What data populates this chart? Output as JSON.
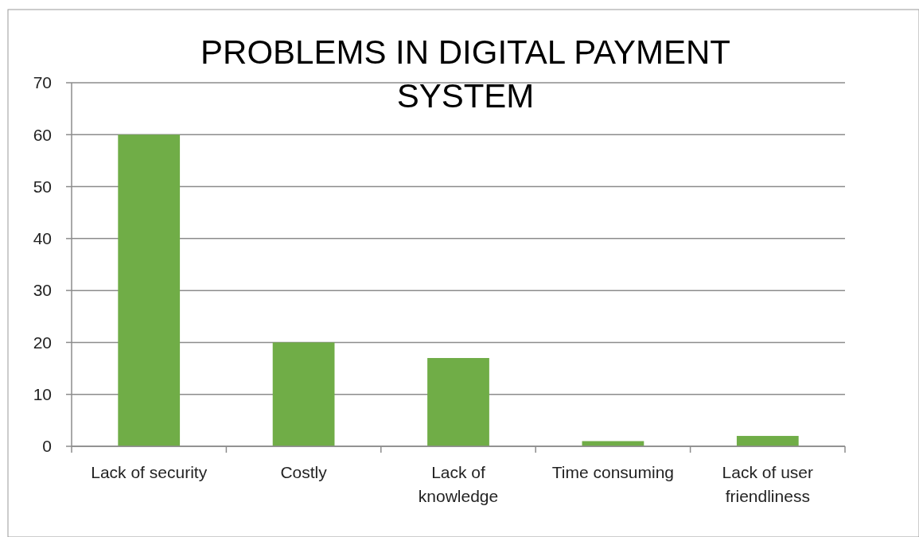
{
  "chart_data": {
    "type": "bar",
    "title": "PROBLEMS IN DIGITAL PAYMENT SYSTEM",
    "categories": [
      "Lack of security",
      "Costly",
      "Lack of knowledge",
      "Time consuming",
      "Lack of user friendliness"
    ],
    "values": [
      60,
      20,
      17,
      1,
      2
    ],
    "color": "#70ad47",
    "ylim": [
      0,
      70
    ],
    "yticks": [
      0,
      10,
      20,
      30,
      40,
      50,
      60,
      70
    ],
    "grid": "y"
  }
}
